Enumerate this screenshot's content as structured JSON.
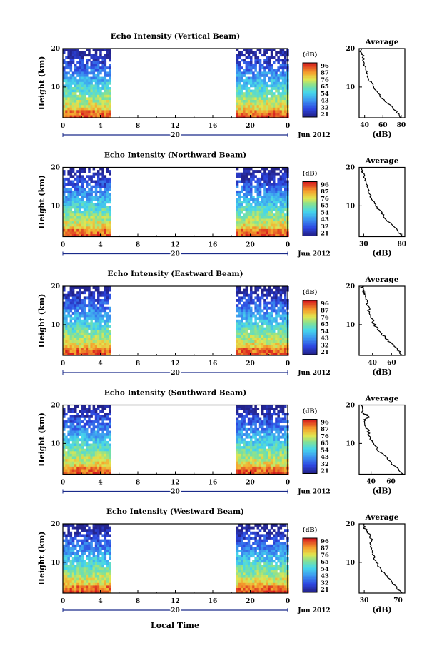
{
  "figure": {
    "xlabel": "Local Time",
    "date_label": "Jun 2012",
    "day_label": "20"
  },
  "chart_data": [
    {
      "type": "heatmap",
      "title": "Echo Intensity (Vertical Beam)",
      "ylabel": "Height (km)",
      "yticks": [
        "20",
        "10"
      ],
      "xticks": [
        "0",
        "4",
        "8",
        "12",
        "16",
        "20",
        "0"
      ],
      "xlim": [
        0,
        24
      ],
      "ylim": [
        2,
        20
      ],
      "data_intervals_hours": [
        [
          0,
          5
        ],
        [
          18.5,
          24
        ]
      ],
      "colorbar": {
        "label": "(dB)",
        "ticks": [
          "96",
          "87",
          "76",
          "65",
          "54",
          "43",
          "32",
          "21"
        ]
      },
      "profile": {
        "title": "Average",
        "xlabel": "(dB)",
        "xticks": [
          "40",
          "60",
          "80"
        ],
        "yticks": [
          "20",
          "10"
        ],
        "xlim": [
          34,
          84
        ],
        "heights_km": [
          2,
          4,
          6,
          8,
          10,
          12,
          14,
          16,
          18,
          19,
          20
        ],
        "values_db": [
          80,
          74,
          64,
          56,
          50,
          44,
          42,
          40,
          38,
          36,
          35
        ]
      }
    },
    {
      "type": "heatmap",
      "title": "Echo Intensity (Northward Beam)",
      "ylabel": "Height (km)",
      "yticks": [
        "20",
        "10"
      ],
      "xticks": [
        "0",
        "4",
        "8",
        "12",
        "16",
        "20",
        "0"
      ],
      "xlim": [
        0,
        24
      ],
      "ylim": [
        2,
        20
      ],
      "data_intervals_hours": [
        [
          0,
          5
        ],
        [
          18.5,
          24
        ]
      ],
      "colorbar": {
        "label": "(dB)",
        "ticks": [
          "96",
          "87",
          "76",
          "65",
          "54",
          "43",
          "32",
          "21"
        ]
      },
      "profile": {
        "title": "Average",
        "xlabel": "(dB)",
        "xticks": [
          "30",
          "80"
        ],
        "yticks": [
          "20",
          "10"
        ],
        "xlim": [
          24,
          84
        ],
        "heights_km": [
          2,
          4,
          6,
          8,
          10,
          12,
          14,
          16,
          18,
          19,
          20
        ],
        "values_db": [
          80,
          72,
          62,
          54,
          46,
          40,
          36,
          33,
          30,
          28,
          27
        ]
      }
    },
    {
      "type": "heatmap",
      "title": "Echo Intensity (Eastward Beam)",
      "ylabel": "Height (km)",
      "yticks": [
        "20",
        "10"
      ],
      "xticks": [
        "0",
        "4",
        "8",
        "12",
        "16",
        "20",
        "0"
      ],
      "xlim": [
        0,
        24
      ],
      "ylim": [
        2,
        20
      ],
      "data_intervals_hours": [
        [
          0,
          5
        ],
        [
          18.5,
          24
        ]
      ],
      "colorbar": {
        "label": "(dB)",
        "ticks": [
          "96",
          "87",
          "76",
          "65",
          "54",
          "43",
          "32",
          "21"
        ]
      },
      "profile": {
        "title": "Average",
        "xlabel": "(dB)",
        "xticks": [
          "40",
          "60"
        ],
        "yticks": [
          "20",
          "10"
        ],
        "xlim": [
          26,
          74
        ],
        "heights_km": [
          2,
          4,
          6,
          8,
          10,
          12,
          14,
          16,
          18,
          19,
          20
        ],
        "values_db": [
          72,
          64,
          56,
          48,
          42,
          38,
          36,
          34,
          32,
          30,
          29
        ]
      }
    },
    {
      "type": "heatmap",
      "title": "Echo Intensity (Southward Beam)",
      "ylabel": "Height (km)",
      "yticks": [
        "20",
        "10"
      ],
      "xticks": [
        "0",
        "4",
        "8",
        "12",
        "16",
        "20",
        "0"
      ],
      "xlim": [
        0,
        24
      ],
      "ylim": [
        2,
        20
      ],
      "data_intervals_hours": [
        [
          0,
          5
        ],
        [
          18.5,
          24
        ]
      ],
      "colorbar": {
        "label": "(dB)",
        "ticks": [
          "96",
          "87",
          "76",
          "65",
          "54",
          "43",
          "32",
          "21"
        ]
      },
      "profile": {
        "title": "Average",
        "xlabel": "(dB)",
        "xticks": [
          "40",
          "60"
        ],
        "yticks": [
          "20",
          "10"
        ],
        "xlim": [
          28,
          74
        ],
        "heights_km": [
          2,
          4,
          6,
          8,
          10,
          12,
          14,
          16,
          17,
          18,
          20
        ],
        "values_db": [
          72,
          64,
          56,
          48,
          42,
          38,
          36,
          33,
          38,
          32,
          30
        ]
      }
    },
    {
      "type": "heatmap",
      "title": "Echo Intensity (Westward Beam)",
      "ylabel": "Height (km)",
      "yticks": [
        "20",
        "10"
      ],
      "xticks": [
        "0",
        "4",
        "8",
        "12",
        "16",
        "20",
        "0"
      ],
      "xlim": [
        0,
        24
      ],
      "ylim": [
        2,
        20
      ],
      "data_intervals_hours": [
        [
          0,
          5
        ],
        [
          18.5,
          24
        ]
      ],
      "colorbar": {
        "label": "(dB)",
        "ticks": [
          "96",
          "87",
          "76",
          "65",
          "54",
          "43",
          "32",
          "21"
        ]
      },
      "profile": {
        "title": "Average",
        "xlabel": "(dB)",
        "xticks": [
          "30",
          "70"
        ],
        "yticks": [
          "20",
          "10"
        ],
        "xlim": [
          24,
          78
        ],
        "heights_km": [
          2,
          4,
          6,
          8,
          10,
          12,
          14,
          16,
          18,
          19,
          20
        ],
        "values_db": [
          74,
          66,
          58,
          50,
          44,
          40,
          38,
          38,
          34,
          30,
          29
        ]
      }
    }
  ]
}
